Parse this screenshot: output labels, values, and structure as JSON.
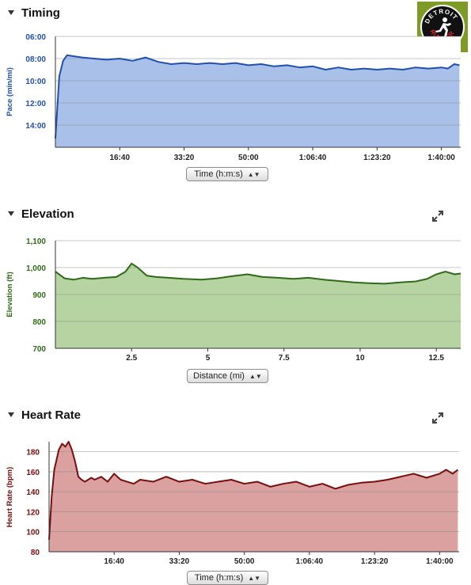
{
  "sections": [
    {
      "title": "Timing",
      "axis_select": "Time (h:m:s)"
    },
    {
      "title": "Elevation",
      "axis_select": "Distance (mi)"
    },
    {
      "title": "Heart Rate",
      "axis_select": "Time (h:m:s)"
    }
  ],
  "logo": {
    "text_top": "DETROIT",
    "text_bottom": "RUNNER"
  },
  "icons": {
    "collapse": "triangle-down-icon",
    "expand": "expand-arrows-icon"
  },
  "chart_data": [
    {
      "type": "area",
      "ylabel": "Pace (min/mi)",
      "y_reversed": true,
      "ylim": [
        6,
        16
      ],
      "yticks": [
        "06:00",
        "08:00",
        "10:00",
        "12:00",
        "14:00"
      ],
      "ytick_values": [
        6,
        8,
        10,
        12,
        14
      ],
      "xlim": [
        0,
        6300
      ],
      "xticks": [
        "16:40",
        "33:20",
        "50:00",
        "1:06:40",
        "1:23:20",
        "1:40:00"
      ],
      "xtick_values": [
        1000,
        2000,
        3000,
        4000,
        5000,
        6000
      ],
      "x": [
        0,
        60,
        120,
        180,
        300,
        420,
        600,
        800,
        1000,
        1200,
        1400,
        1600,
        1800,
        2000,
        2200,
        2400,
        2600,
        2800,
        3000,
        3200,
        3400,
        3600,
        3800,
        4000,
        4200,
        4400,
        4600,
        4800,
        5000,
        5200,
        5400,
        5600,
        5800,
        6000,
        6100,
        6200,
        6280
      ],
      "values": [
        15.2,
        9.6,
        8.2,
        7.7,
        7.8,
        7.9,
        8.0,
        8.1,
        8.0,
        8.2,
        7.9,
        8.3,
        8.5,
        8.4,
        8.5,
        8.4,
        8.5,
        8.4,
        8.6,
        8.5,
        8.7,
        8.6,
        8.8,
        8.7,
        9.0,
        8.8,
        9.0,
        8.9,
        9.0,
        8.9,
        9.0,
        8.8,
        8.9,
        8.8,
        8.9,
        8.5,
        8.6
      ],
      "color": "#1f4faf",
      "fill": "#a9c1e8",
      "grid": true
    },
    {
      "type": "area",
      "ylabel": "Elevation (ft)",
      "ylim": [
        700,
        1100
      ],
      "yticks": [
        "700",
        "800",
        "900",
        "1,000",
        "1,100"
      ],
      "ytick_values": [
        700,
        800,
        900,
        1000,
        1100
      ],
      "xlim": [
        0,
        13.3
      ],
      "xticks": [
        "2.5",
        "5",
        "7.5",
        "10",
        "12.5"
      ],
      "xtick_values": [
        2.5,
        5,
        7.5,
        10,
        12.5
      ],
      "x": [
        0,
        0.3,
        0.6,
        0.9,
        1.2,
        1.6,
        2.0,
        2.3,
        2.5,
        2.7,
        3.0,
        3.3,
        3.7,
        4.2,
        4.8,
        5.3,
        5.8,
        6.3,
        6.8,
        7.3,
        7.8,
        8.3,
        8.8,
        9.3,
        9.8,
        10.3,
        10.8,
        11.3,
        11.8,
        12.2,
        12.5,
        12.8,
        13.1,
        13.3
      ],
      "values": [
        985,
        960,
        955,
        962,
        958,
        962,
        965,
        985,
        1015,
        1000,
        970,
        965,
        962,
        958,
        955,
        960,
        968,
        975,
        965,
        962,
        958,
        962,
        955,
        950,
        945,
        942,
        940,
        945,
        948,
        958,
        975,
        985,
        975,
        978
      ],
      "color": "#2f6b16",
      "fill": "#b6d3a2",
      "grid": true
    },
    {
      "type": "area",
      "ylabel": "Heart Rate (bpm)",
      "ylim": [
        80,
        190
      ],
      "yticks": [
        "80",
        "100",
        "120",
        "140",
        "160",
        "180"
      ],
      "ytick_values": [
        80,
        100,
        120,
        140,
        160,
        180
      ],
      "xlim": [
        0,
        6300
      ],
      "xticks": [
        "16:40",
        "33:20",
        "50:00",
        "1:06:40",
        "1:23:20",
        "1:40:00"
      ],
      "xtick_values": [
        1000,
        2000,
        3000,
        4000,
        5000,
        6000
      ],
      "x": [
        0,
        40,
        80,
        150,
        200,
        250,
        300,
        350,
        400,
        450,
        500,
        550,
        600,
        650,
        700,
        800,
        900,
        1000,
        1100,
        1200,
        1300,
        1400,
        1600,
        1800,
        2000,
        2200,
        2400,
        2600,
        2800,
        3000,
        3200,
        3400,
        3600,
        3800,
        4000,
        4200,
        4400,
        4600,
        4800,
        5000,
        5200,
        5400,
        5600,
        5800,
        6000,
        6100,
        6200,
        6280
      ],
      "values": [
        92,
        135,
        162,
        182,
        188,
        185,
        190,
        182,
        170,
        155,
        152,
        150,
        152,
        154,
        152,
        155,
        150,
        158,
        152,
        150,
        148,
        152,
        150,
        155,
        150,
        152,
        148,
        150,
        152,
        148,
        150,
        145,
        148,
        150,
        145,
        148,
        143,
        147,
        149,
        150,
        152,
        155,
        158,
        154,
        158,
        162,
        158,
        162
      ],
      "color": "#7a0d0d",
      "fill": "#dba0a0",
      "grid": true
    }
  ]
}
